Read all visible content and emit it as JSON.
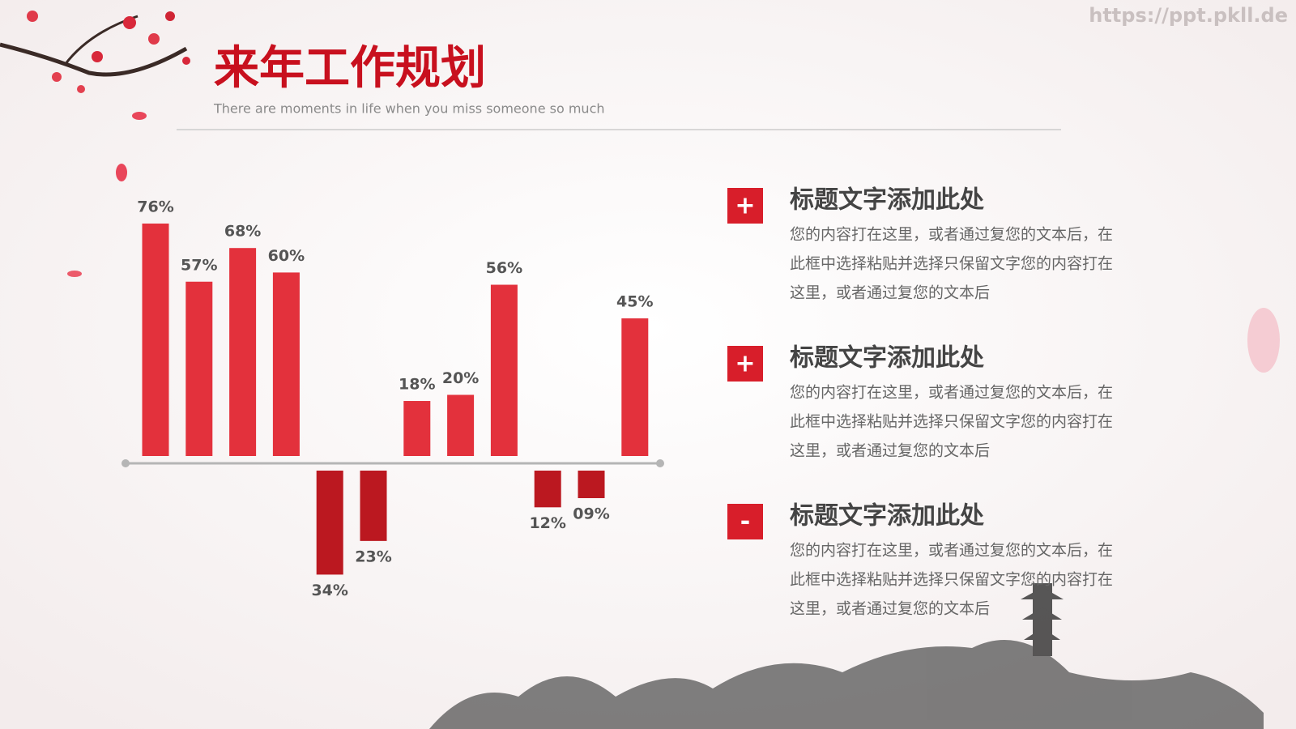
{
  "header": {
    "title": "来年工作规划",
    "subtitle": "There are moments in life when you miss someone so much"
  },
  "watermark": "https://ppt.pkll.de",
  "chart_data": {
    "type": "bar",
    "values": [
      76,
      57,
      68,
      60,
      -34,
      -23,
      18,
      20,
      56,
      -12,
      -9,
      45
    ],
    "value_labels": [
      "76%",
      "57%",
      "68%",
      "60%",
      "34%",
      "23%",
      "18%",
      "20%",
      "56%",
      "12%",
      "09%",
      "45%"
    ],
    "color": "#e3313c",
    "negative_color": "#bb1820"
  },
  "items": [
    {
      "icon": "+",
      "title": "标题文字添加此处",
      "lines": [
        "您的内容打在这里，或者通过复您的文本后，在",
        "此框中选择粘贴并选择只保留文字您的内容打在",
        "这里，或者通过复您的文本后"
      ]
    },
    {
      "icon": "+",
      "title": "标题文字添加此处",
      "lines": [
        "您的内容打在这里，或者通过复您的文本后，在",
        "此框中选择粘贴并选择只保留文字您的内容打在",
        "这里，或者通过复您的文本后"
      ]
    },
    {
      "icon": "-",
      "title": "标题文字添加此处",
      "lines": [
        "您的内容打在这里，或者通过复您的文本后，在",
        "此框中选择粘贴并选择只保留文字您的内容打在",
        "这里，或者通过复您的文本后"
      ]
    }
  ]
}
